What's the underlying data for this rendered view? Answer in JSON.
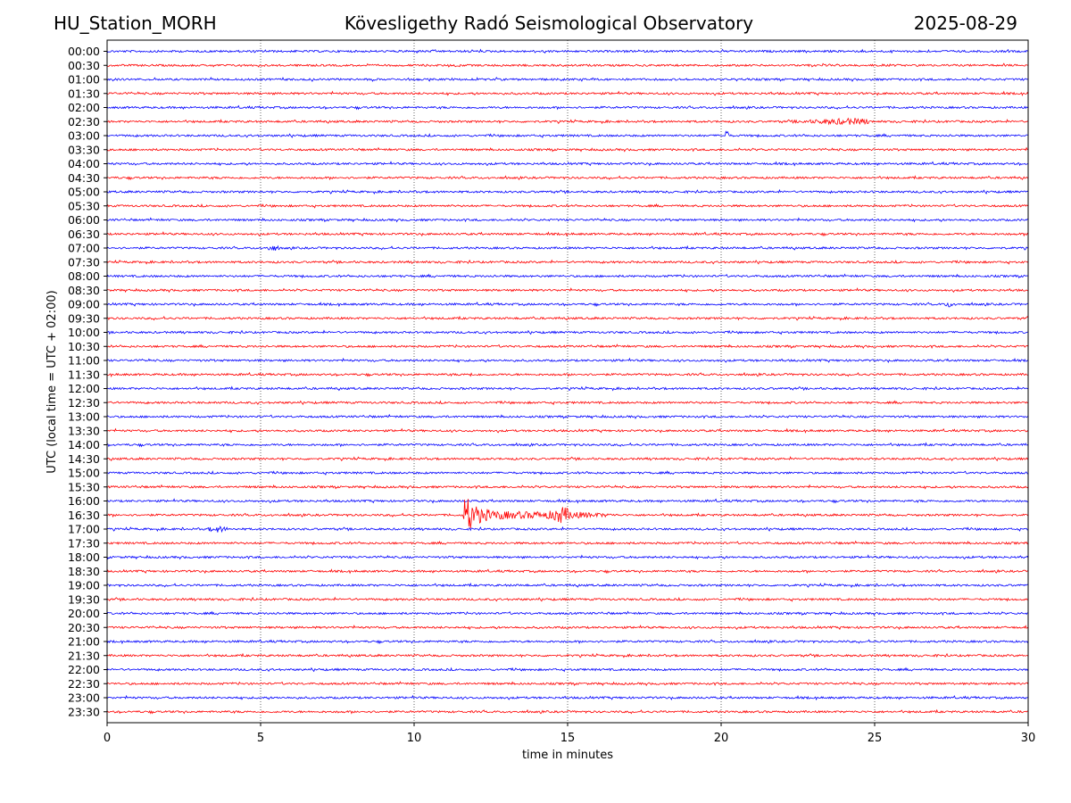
{
  "header": {
    "station": "HU_Station_MORH",
    "observatory": "Kövesligethy Radó Seismological Observatory",
    "date": "2025-08-29"
  },
  "colors": {
    "trace_a": "#0000ff",
    "trace_b": "#ff0000",
    "grid": "#000000"
  },
  "chart_data": {
    "type": "line",
    "title": "Kövesligethy Radó Seismological Observatory",
    "xlabel": "time in minutes",
    "ylabel": "UTC (local time = UTC + 02:00)",
    "xlim": [
      0,
      30
    ],
    "xticks": [
      0,
      5,
      10,
      15,
      20,
      25,
      30
    ],
    "grid": "vertical dotted at 5-minute ticks",
    "rows": [
      "00:00",
      "00:30",
      "01:00",
      "01:30",
      "02:00",
      "02:30",
      "03:00",
      "03:30",
      "04:00",
      "04:30",
      "05:00",
      "05:30",
      "06:00",
      "06:30",
      "07:00",
      "07:30",
      "08:00",
      "08:30",
      "09:00",
      "09:30",
      "10:00",
      "10:30",
      "11:00",
      "11:30",
      "12:00",
      "12:30",
      "13:00",
      "13:30",
      "14:00",
      "14:30",
      "15:00",
      "15:30",
      "16:00",
      "16:30",
      "17:00",
      "17:30",
      "18:00",
      "18:30",
      "19:00",
      "19:30",
      "20:00",
      "20:30",
      "21:00",
      "21:30",
      "22:00",
      "22:30",
      "23:00",
      "23:30"
    ],
    "row_colors": "alternating blue (hour rows) and red (half-hour rows)",
    "events": [
      {
        "row": "16:30",
        "start_min": 11.6,
        "end_min": 17.3,
        "peak_min": 11.65,
        "secondary_peak_min": 14.8,
        "amplitude": "large"
      },
      {
        "row": "02:30",
        "start_min": 22.2,
        "end_min": 24.8,
        "peak_min": 24.2,
        "amplitude": "small"
      },
      {
        "row": "03:00",
        "start_min": 20.15,
        "end_min": 20.25,
        "peak_min": 20.2,
        "amplitude": "spike"
      },
      {
        "row": "07:00",
        "start_min": 5.2,
        "end_min": 5.6,
        "peak_min": 5.4,
        "amplitude": "small"
      },
      {
        "row": "09:00",
        "start_min": 27.3,
        "end_min": 27.6,
        "peak_min": 27.45,
        "amplitude": "small"
      },
      {
        "row": "17:00",
        "start_min": 3.3,
        "end_min": 3.9,
        "peak_min": 3.6,
        "amplitude": "small"
      },
      {
        "row": "11:30",
        "start_min": 11.8,
        "end_min": 11.9,
        "peak_min": 11.85,
        "amplitude": "small"
      }
    ]
  }
}
